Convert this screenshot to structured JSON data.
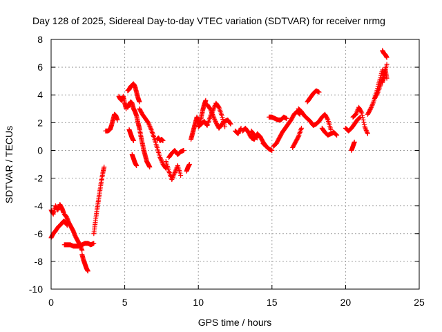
{
  "chart_data": {
    "type": "scatter",
    "title": "Day 128 of 2025, Sidereal Day-to-day VTEC variation (SDTVAR) for receiver nrmg",
    "xlabel": "GPS time / hours",
    "ylabel": "SDTVAR / TECUs",
    "xlim": [
      0,
      25
    ],
    "ylim": [
      -10,
      8
    ],
    "xticks": [
      0,
      5,
      10,
      15,
      20,
      25
    ],
    "yticks": [
      -10,
      -8,
      -6,
      -4,
      -2,
      0,
      2,
      4,
      6,
      8
    ],
    "grid": true,
    "marker": "+",
    "color": "#ff0000",
    "series": [
      {
        "name": "SDTVAR",
        "segments": [
          {
            "x": [
              0.0,
              0.15,
              0.3,
              0.45,
              0.6,
              0.75,
              0.85
            ],
            "y": [
              -4.3,
              -4.6,
              -4.0,
              -4.3,
              -3.9,
              -4.2,
              -4.5
            ]
          },
          {
            "x": [
              0.0,
              0.15,
              0.3,
              0.5,
              0.7,
              0.85,
              1.0,
              1.1
            ],
            "y": [
              -6.3,
              -6.0,
              -5.8,
              -5.5,
              -5.3,
              -5.1,
              -5.2,
              -5.4
            ]
          },
          {
            "x": [
              0.9,
              1.05,
              1.2,
              1.35,
              1.5,
              1.65,
              1.8,
              1.95,
              2.1
            ],
            "y": [
              -4.6,
              -4.8,
              -5.2,
              -5.5,
              -5.8,
              -6.2,
              -6.5,
              -6.8,
              -7.2
            ]
          },
          {
            "x": [
              2.1,
              2.2,
              2.3,
              2.4,
              2.5
            ],
            "y": [
              -7.5,
              -7.9,
              -8.2,
              -8.5,
              -8.7
            ]
          },
          {
            "x": [
              0.9,
              1.1,
              1.3,
              1.5,
              1.7,
              1.9,
              2.1,
              2.3,
              2.5,
              2.7,
              2.9
            ],
            "y": [
              -6.8,
              -6.8,
              -6.8,
              -6.9,
              -6.9,
              -6.9,
              -6.8,
              -6.7,
              -6.7,
              -6.8,
              -6.7
            ]
          },
          {
            "x": [
              2.9,
              3.0,
              3.1,
              3.2,
              3.3,
              3.4,
              3.5,
              3.6
            ],
            "y": [
              -6.0,
              -5.2,
              -4.4,
              -3.7,
              -3.0,
              -2.3,
              -1.7,
              -1.2
            ]
          },
          {
            "x": [
              3.7,
              3.85,
              4.0,
              4.1,
              4.2,
              4.3,
              4.4,
              4.5
            ],
            "y": [
              1.4,
              1.4,
              1.5,
              1.8,
              2.2,
              2.6,
              2.5,
              2.2
            ]
          },
          {
            "x": [
              4.6,
              4.7,
              4.8,
              4.9,
              5.0,
              5.1
            ],
            "y": [
              3.9,
              3.7,
              3.6,
              3.9,
              3.4,
              3.0
            ]
          },
          {
            "x": [
              5.2,
              5.3,
              5.4,
              5.5,
              5.6,
              5.7,
              5.8,
              5.9,
              6.0
            ],
            "y": [
              4.3,
              4.4,
              4.6,
              4.7,
              4.8,
              4.6,
              4.2,
              3.8,
              3.5
            ]
          },
          {
            "x": [
              5.2,
              5.3,
              5.4,
              5.5,
              5.6,
              5.7,
              5.8,
              5.9,
              6.0,
              6.1,
              6.2,
              6.3,
              6.4,
              6.5,
              6.6,
              6.7
            ],
            "y": [
              3.1,
              3.3,
              3.5,
              3.4,
              3.0,
              2.8,
              2.5,
              2.0,
              1.6,
              1.0,
              0.5,
              0.0,
              -0.4,
              -0.8,
              -1.0,
              -1.2
            ]
          },
          {
            "x": [
              5.5,
              5.6,
              5.7,
              5.8
            ],
            "y": [
              -0.3,
              -0.6,
              -0.9,
              -1.1
            ]
          },
          {
            "x": [
              5.3,
              5.4,
              5.5,
              5.6
            ],
            "y": [
              1.5,
              1.2,
              0.9,
              0.7
            ]
          },
          {
            "x": [
              6.0,
              6.2,
              6.4,
              6.6,
              6.8,
              7.0,
              7.2,
              7.4,
              7.6,
              7.8
            ],
            "y": [
              3.0,
              2.6,
              2.3,
              2.0,
              1.5,
              0.9,
              0.2,
              -0.5,
              -1.0,
              -1.3
            ]
          },
          {
            "x": [
              7.2,
              7.3,
              7.4,
              7.5,
              7.6
            ],
            "y": [
              0.8,
              0.9,
              0.7,
              0.8,
              0.7
            ]
          },
          {
            "x": [
              7.8,
              8.0,
              8.2,
              8.4,
              8.6,
              8.8
            ],
            "y": [
              -0.8,
              -1.5,
              -2.1,
              -1.6,
              -1.1,
              -1.8
            ]
          },
          {
            "x": [
              8.0,
              8.2,
              8.4,
              8.6,
              8.8,
              9.0
            ],
            "y": [
              -0.5,
              -0.2,
              0.0,
              -0.3,
              -0.1,
              0.0
            ]
          },
          {
            "x": [
              9.2,
              9.3,
              9.4
            ],
            "y": [
              -1.5,
              -1.2,
              -1.0
            ]
          },
          {
            "x": [
              9.5,
              9.6,
              9.7,
              9.8,
              9.9,
              10.0,
              10.1,
              10.2,
              10.3,
              10.4,
              10.5
            ],
            "y": [
              0.8,
              1.2,
              1.6,
              2.0,
              2.4,
              2.1,
              1.8,
              2.4,
              2.9,
              3.3,
              3.6
            ]
          },
          {
            "x": [
              10.0,
              10.2,
              10.4,
              10.6,
              10.8,
              11.0,
              11.2,
              11.4,
              11.6,
              11.8
            ],
            "y": [
              1.7,
              1.9,
              2.1,
              1.8,
              2.4,
              2.9,
              3.4,
              3.1,
              2.5,
              1.7
            ]
          },
          {
            "x": [
              10.6,
              10.8,
              11.0,
              11.2,
              11.4,
              11.6,
              11.8,
              12.0,
              12.2
            ],
            "y": [
              3.3,
              3.0,
              2.5,
              2.0,
              1.6,
              1.9,
              2.1,
              2.2,
              1.9
            ]
          },
          {
            "x": [
              12.5,
              12.7,
              12.9
            ],
            "y": [
              1.4,
              1.2,
              1.6
            ]
          },
          {
            "x": [
              13.0,
              13.2,
              13.4,
              13.6,
              13.8,
              14.0,
              14.2,
              14.4,
              14.6,
              14.8,
              15.0
            ],
            "y": [
              1.4,
              1.6,
              1.3,
              0.9,
              0.8,
              1.2,
              1.0,
              0.6,
              0.3,
              0.1,
              0.0
            ]
          },
          {
            "x": [
              13.6,
              13.8,
              14.0
            ],
            "y": [
              1.4,
              1.1,
              0.9
            ]
          },
          {
            "x": [
              14.4,
              14.6
            ],
            "y": [
              0.5,
              0.3
            ]
          },
          {
            "x": [
              14.8,
              15.0,
              15.2,
              15.4,
              15.6,
              15.8,
              16.0
            ],
            "y": [
              2.4,
              2.4,
              2.3,
              2.2,
              2.2,
              2.4,
              2.3
            ]
          },
          {
            "x": [
              15.1,
              15.3,
              15.5,
              15.7,
              15.9,
              16.1,
              16.3,
              16.5,
              16.7,
              16.9
            ],
            "y": [
              0.3,
              0.5,
              0.9,
              1.3,
              1.6,
              1.9,
              2.2,
              2.6,
              2.8,
              2.6
            ]
          },
          {
            "x": [
              16.4,
              16.6,
              16.8,
              17.0
            ],
            "y": [
              0.2,
              0.6,
              1.0,
              1.6
            ]
          },
          {
            "x": [
              16.8,
              17.0,
              17.2,
              17.4,
              17.6,
              17.8,
              18.0,
              18.2,
              18.4,
              18.6,
              18.8,
              19.0
            ],
            "y": [
              3.0,
              2.8,
              2.5,
              2.3,
              2.1,
              1.8,
              1.9,
              2.1,
              2.4,
              2.6,
              2.2,
              1.5
            ]
          },
          {
            "x": [
              17.4,
              17.6,
              17.8,
              18.0,
              18.2
            ],
            "y": [
              3.5,
              3.8,
              4.1,
              4.3,
              4.2
            ]
          },
          {
            "x": [
              18.4,
              18.6,
              18.8,
              19.0,
              19.2,
              19.4
            ],
            "y": [
              1.6,
              1.3,
              1.1,
              1.2,
              1.3,
              1.1
            ]
          },
          {
            "x": [
              20.0,
              20.2,
              20.4,
              20.6,
              20.8,
              21.0
            ],
            "y": [
              1.6,
              1.4,
              1.6,
              1.9,
              2.2,
              2.4
            ]
          },
          {
            "x": [
              20.4,
              20.5,
              20.6
            ],
            "y": [
              0.0,
              0.3,
              0.6
            ]
          },
          {
            "x": [
              20.5,
              20.7,
              20.9,
              21.1,
              21.3,
              21.5
            ],
            "y": [
              2.4,
              2.6,
              3.1,
              2.7,
              1.7,
              1.2
            ]
          },
          {
            "x": [
              21.5,
              21.7,
              21.9,
              22.1,
              22.3,
              22.5
            ],
            "y": [
              2.6,
              3.0,
              3.5,
              4.2,
              5.0,
              5.8
            ]
          },
          {
            "x": [
              22.0,
              22.2,
              22.4,
              22.6,
              22.8
            ],
            "y": [
              3.8,
              4.2,
              4.8,
              5.5,
              6.2
            ]
          },
          {
            "x": [
              22.5,
              22.6,
              22.7,
              22.8
            ],
            "y": [
              7.2,
              7.0,
              6.9,
              6.7
            ]
          },
          {
            "x": [
              22.5,
              22.6,
              22.7,
              22.8
            ],
            "y": [
              4.9,
              5.3,
              5.8,
              5.2
            ]
          }
        ]
      }
    ]
  }
}
